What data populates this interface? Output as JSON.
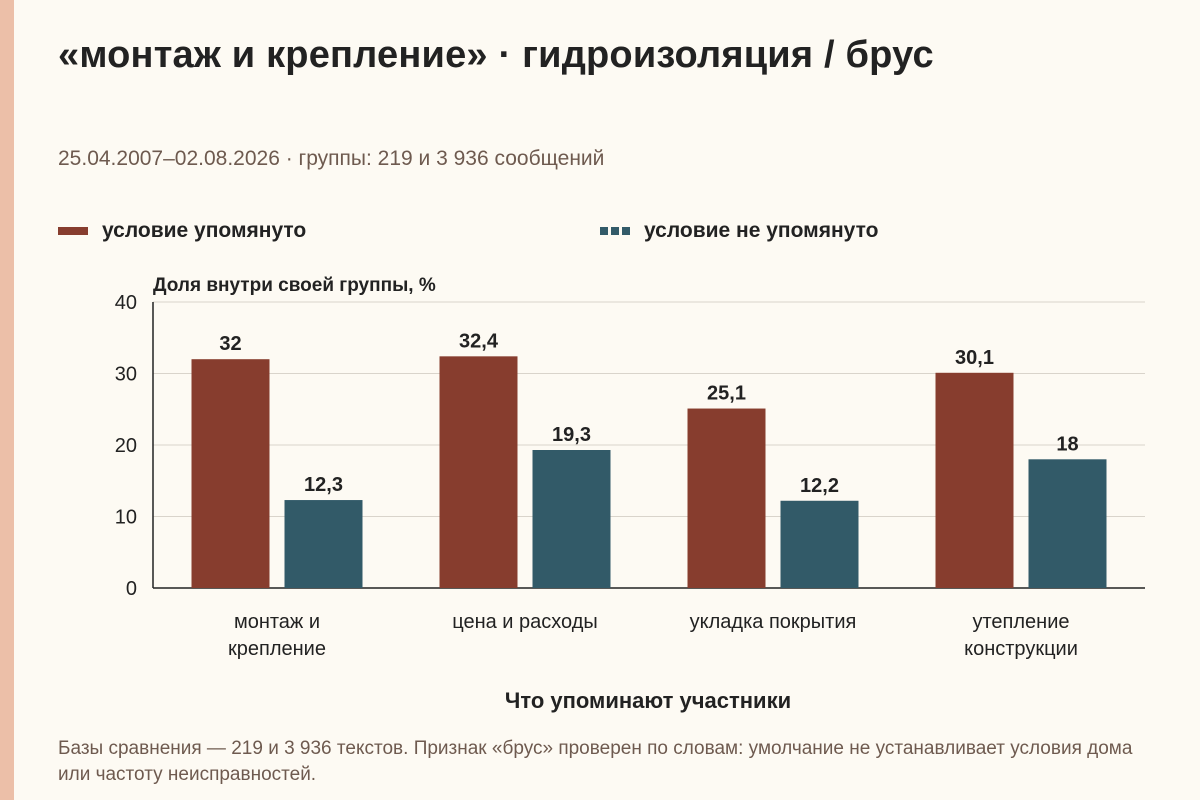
{
  "title": "«монтаж и крепление» · гидроизоляция / брус",
  "subtitle": "25.04.2007–02.08.2026 · группы: 219 и 3 936 сообщений",
  "footnote": "Базы сравнения — 219 и 3 936 текстов. Признак «брус» проверен по словам: умолчание не устанавливает условия дома или частоту неисправностей.",
  "colors": {
    "background": "#fdfaf3",
    "stripe": "#ecbfa8",
    "series_mentioned": "#873d2e",
    "series_not_mentioned": "#325a68"
  },
  "chart_data": {
    "type": "bar",
    "title": "«монтаж и крепление» · гидроизоляция / брус",
    "ylabel": "Доля внутри своей группы, %",
    "xlabel": "Что упоминают участники",
    "ylim": [
      0,
      40
    ],
    "yticks": [
      0,
      10,
      20,
      30,
      40
    ],
    "grid": true,
    "legend_position": "top",
    "categories": [
      [
        "монтаж и",
        "крепление"
      ],
      [
        "цена и расходы"
      ],
      [
        "укладка покрытия"
      ],
      [
        "утепление",
        "конструкции"
      ]
    ],
    "series": [
      {
        "name": "условие упомянуто",
        "values": [
          32,
          32.4,
          25.1,
          30.1
        ],
        "labels": [
          "32",
          "32,4",
          "25,1",
          "30,1"
        ],
        "color": "#873d2e"
      },
      {
        "name": "условие не упомянуто",
        "values": [
          12.3,
          19.3,
          12.2,
          18
        ],
        "labels": [
          "12,3",
          "19,3",
          "12,2",
          "18"
        ],
        "color": "#325a68"
      }
    ]
  }
}
